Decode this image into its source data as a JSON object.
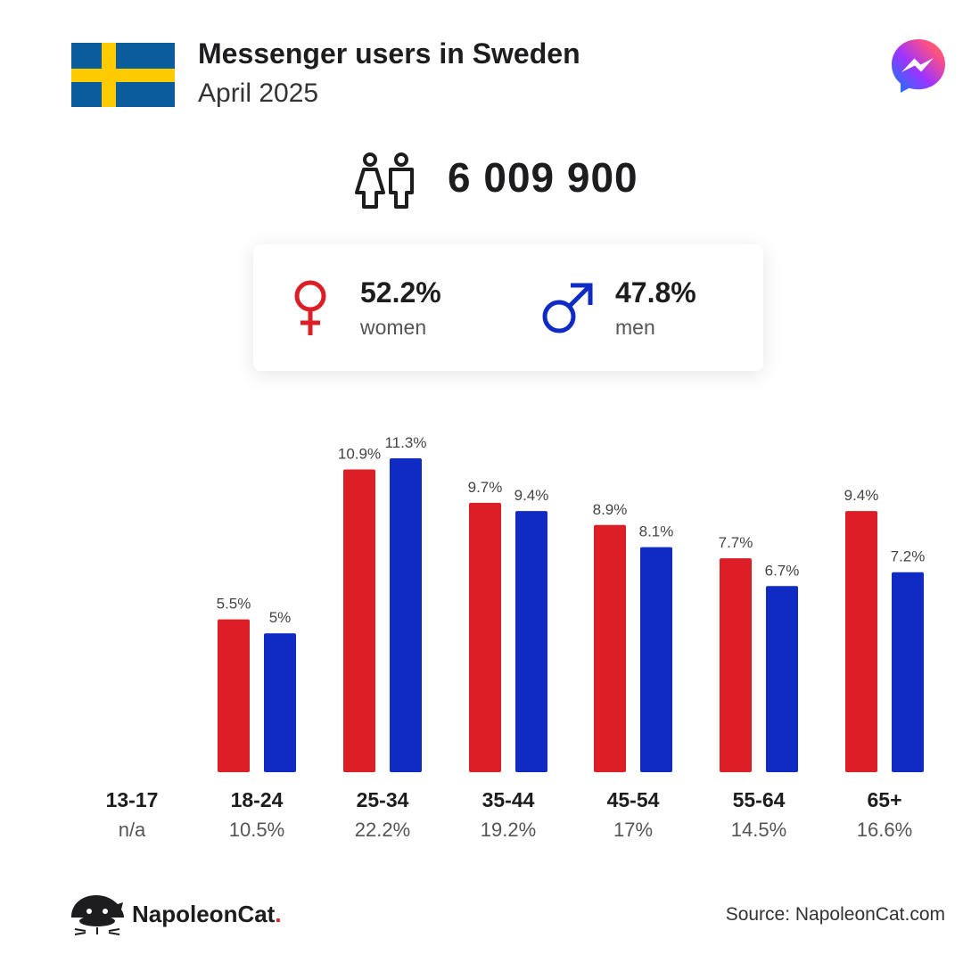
{
  "header": {
    "title": "Messenger users in Sweden",
    "subtitle": "April 2025"
  },
  "total": {
    "value": "6 009 900"
  },
  "gender": {
    "women": {
      "pct": "52.2%",
      "label": "women"
    },
    "men": {
      "pct": "47.8%",
      "label": "men"
    }
  },
  "colors": {
    "women": "#dc1f26",
    "men": "#0f2bc3",
    "flag_blue": "#0a5c9c",
    "flag_yellow": "#fecb00"
  },
  "chart_data": {
    "type": "bar",
    "categories": [
      "13-17",
      "18-24",
      "25-34",
      "35-44",
      "45-54",
      "55-64",
      "65+"
    ],
    "category_totals": [
      "n/a",
      "10.5%",
      "22.2%",
      "19.2%",
      "17%",
      "14.5%",
      "16.6%"
    ],
    "series": [
      {
        "name": "women",
        "values": [
          null,
          5.5,
          10.9,
          9.7,
          8.9,
          7.7,
          9.4
        ],
        "labels": [
          "",
          "5.5%",
          "10.9%",
          "9.7%",
          "8.9%",
          "7.7%",
          "9.4%"
        ]
      },
      {
        "name": "men",
        "values": [
          null,
          5,
          11.3,
          9.4,
          8.1,
          6.7,
          7.2
        ],
        "labels": [
          "",
          "5%",
          "11.3%",
          "9.4%",
          "8.1%",
          "6.7%",
          "7.2%"
        ]
      }
    ],
    "ylim": [
      0,
      11.3
    ],
    "grid": false,
    "title": "",
    "xlabel": "",
    "ylabel": ""
  },
  "footer": {
    "brand_name": "NapoleonCat",
    "brand_dot": ".",
    "source": "Source: NapoleonCat.com"
  },
  "icons": {
    "flag": "sweden-flag-icon",
    "app": "messenger-logo-icon",
    "people": "people-icon",
    "female": "female-symbol-icon",
    "male": "male-symbol-icon",
    "brand": "napoleoncat-logo-icon"
  }
}
